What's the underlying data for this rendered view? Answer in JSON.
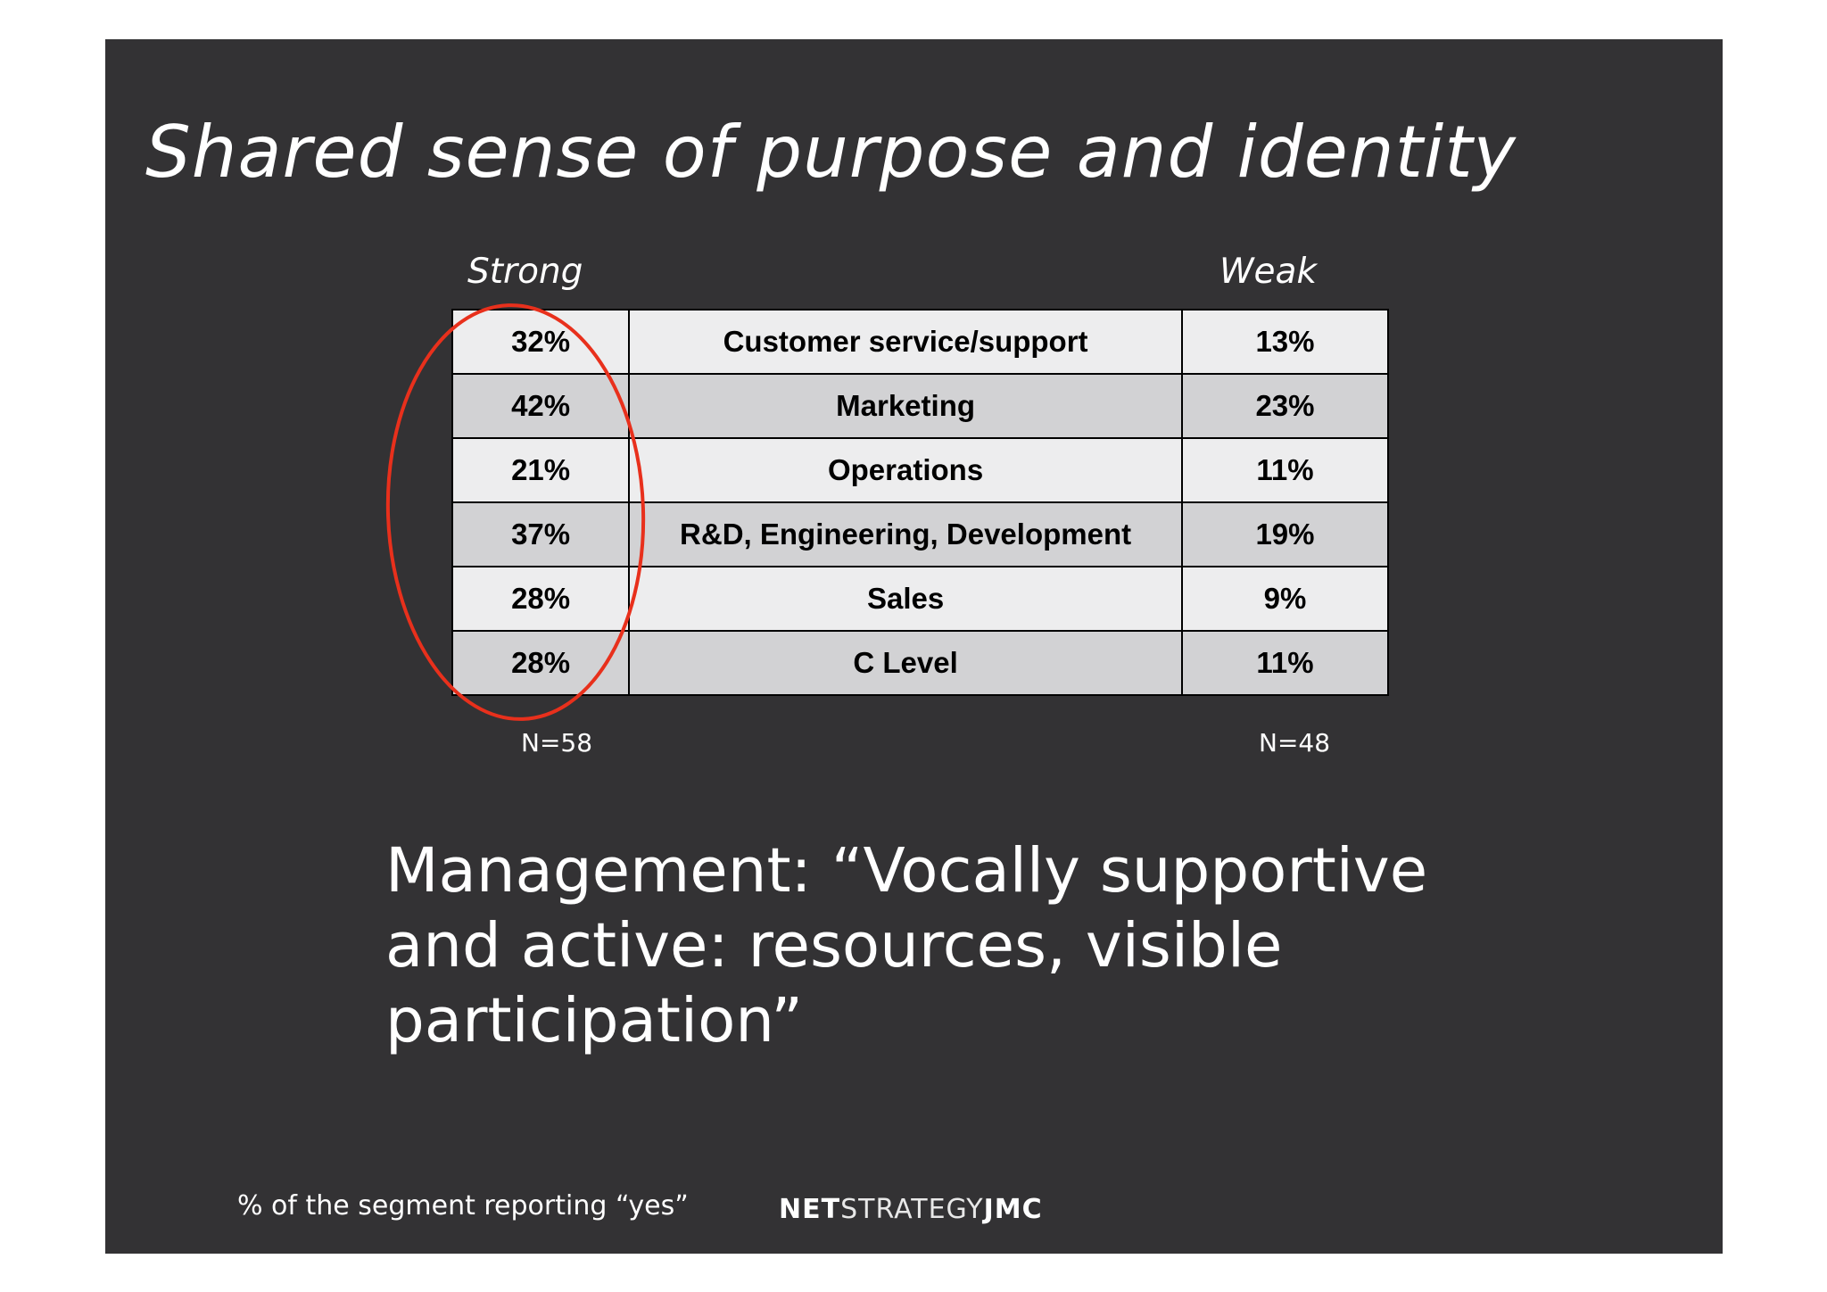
{
  "slide": {
    "title": "Shared sense of purpose and identity",
    "columns": {
      "strong": "Strong",
      "weak": "Weak"
    },
    "table": {
      "rows": [
        {
          "strong": "32%",
          "segment": "Customer service/support",
          "weak": "13%"
        },
        {
          "strong": "42%",
          "segment": "Marketing",
          "weak": "23%"
        },
        {
          "strong": "21%",
          "segment": "Operations",
          "weak": "11%"
        },
        {
          "strong": "37%",
          "segment": "R&D, Engineering, Development",
          "weak": "19%"
        },
        {
          "strong": "28%",
          "segment": "Sales",
          "weak": "9%"
        },
        {
          "strong": "28%",
          "segment": "C Level",
          "weak": "11%"
        }
      ]
    },
    "sample_sizes": {
      "strong": "N=58",
      "weak": "N=48"
    },
    "highlight_color": "#e8301c",
    "quote": "Management:  “Vocally supportive\nand active: resources, visible\nparticipation”",
    "footnote": "% of the segment reporting “yes”",
    "logo": {
      "part1": "NET",
      "part2": "STRATEGY",
      "part3": "JMC"
    }
  }
}
